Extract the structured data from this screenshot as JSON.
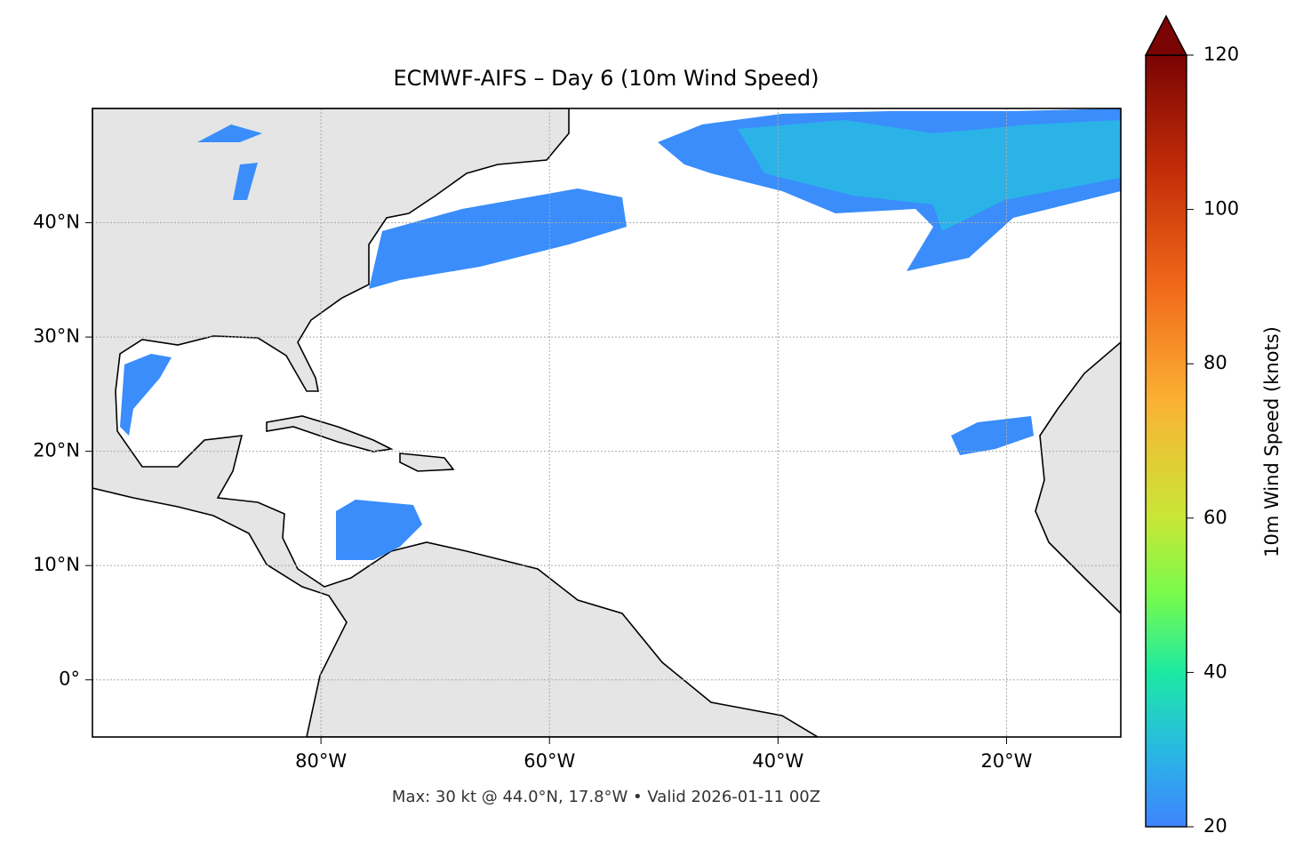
{
  "map": {
    "type": "map",
    "title": "ECMWF-AIFS – Day 6 (10m Wind Speed)",
    "xlim": [
      -100,
      -10
    ],
    "ylim": [
      -5,
      50
    ],
    "xticks": [
      {
        "value": -80,
        "label": "80°W"
      },
      {
        "value": -60,
        "label": "60°W"
      },
      {
        "value": -40,
        "label": "40°W"
      },
      {
        "value": -20,
        "label": "20°W"
      }
    ],
    "yticks": [
      {
        "value": 40,
        "label": "40°N"
      },
      {
        "value": 30,
        "label": "30°N"
      },
      {
        "value": 20,
        "label": "20°N"
      },
      {
        "value": 10,
        "label": "10°N"
      },
      {
        "value": 0,
        "label": "0°"
      }
    ],
    "grid": true,
    "footer": "Max: 30 kt @ 44.0°N, 17.8°W • Valid 2026-01-11 00Z",
    "colorbar": {
      "label": "10m Wind Speed (knots)",
      "lim": [
        20,
        120
      ],
      "ticks": [
        20,
        40,
        60,
        80,
        100,
        120
      ]
    }
  }
}
